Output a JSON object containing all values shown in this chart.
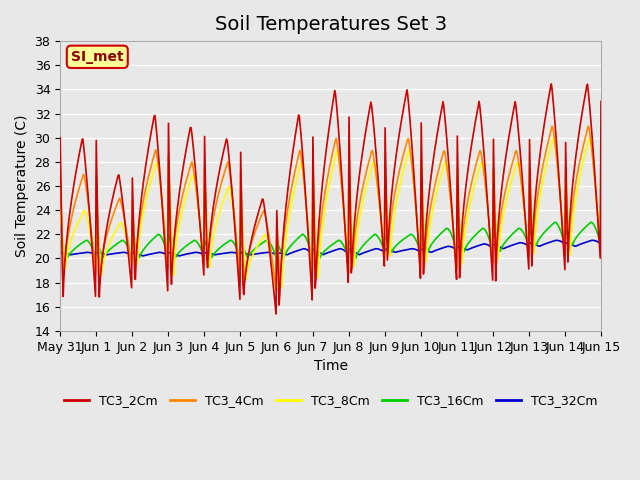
{
  "title": "Soil Temperatures Set 3",
  "xlabel": "Time",
  "ylabel": "Soil Temperature (C)",
  "ylim": [
    14,
    38
  ],
  "yticks": [
    14,
    16,
    18,
    20,
    22,
    24,
    26,
    28,
    30,
    32,
    34,
    36,
    38
  ],
  "x_tick_labels": [
    "May 31",
    "Jun 1",
    "Jun 2",
    "Jun 3",
    "Jun 4",
    "Jun 5",
    "Jun 6",
    "Jun 7",
    "Jun 8",
    "Jun 9",
    "Jun 10",
    "Jun 11",
    "Jun 12",
    "Jun 13",
    "Jun 14",
    "Jun 15"
  ],
  "x_tick_positions": [
    0,
    1,
    2,
    3,
    4,
    5,
    6,
    7,
    8,
    9,
    10,
    11,
    12,
    13,
    14,
    15
  ],
  "series_colors": [
    "#cc0000",
    "#ff8800",
    "#ffff00",
    "#00cc00",
    "#0000cc"
  ],
  "series_names": [
    "TC3_2Cm",
    "TC3_4Cm",
    "TC3_8Cm",
    "TC3_16Cm",
    "TC3_32Cm"
  ],
  "annotation_text": "SI_met",
  "annotation_bg": "#ffff99",
  "annotation_border": "#cc0000",
  "bg_color": "#e8e8e8",
  "plot_bg": "#e8e8e8",
  "grid_color": "#ffffff",
  "title_fontsize": 14,
  "label_fontsize": 10,
  "tick_fontsize": 9
}
